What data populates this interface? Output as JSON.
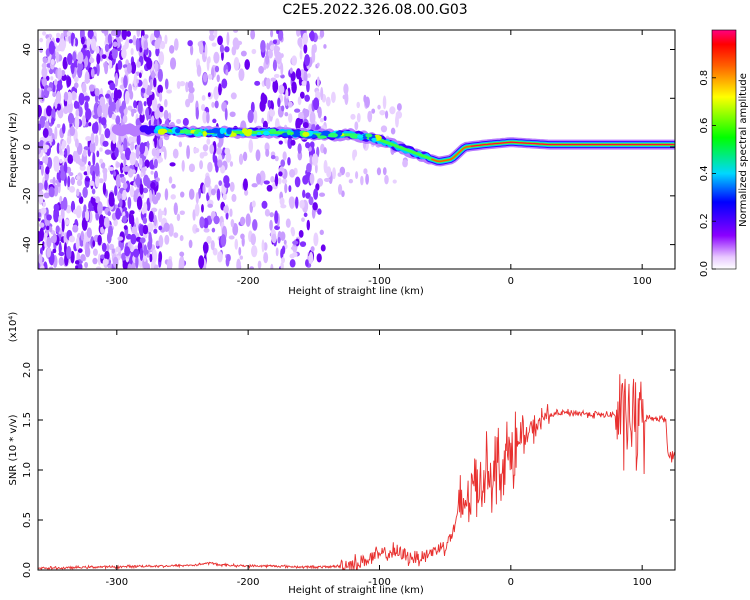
{
  "title": "C2E5.2022.326.08.00.G03",
  "chart_data": [
    {
      "type": "heatmap",
      "xlabel": "Height of straight line (km)",
      "ylabel": "Frequency (Hz)",
      "xlim": [
        -360,
        125
      ],
      "ylim": [
        -50,
        48
      ],
      "xticks": [
        -300,
        -200,
        -100,
        0,
        100
      ],
      "yticks": [
        -40,
        -20,
        0,
        20,
        40
      ],
      "xtick_labels": [
        "-300",
        "-200",
        "-100",
        "0",
        "100"
      ],
      "ytick_labels": [
        "-40",
        "-20",
        "0",
        "20",
        "40"
      ],
      "colorbar": {
        "label": "Normalized spectral amplitude",
        "range": [
          0,
          1
        ],
        "ticks": [
          0.0,
          0.2,
          0.4,
          0.6,
          0.8
        ],
        "tick_labels": [
          "0.0",
          "0.2",
          "0.4",
          "0.6",
          "0.8"
        ],
        "colormap": "rainbow (white → purple → blue → cyan → green → yellow → orange → red)"
      },
      "ridge": [
        {
          "x": -270,
          "y": 7
        },
        {
          "x": -240,
          "y": 6
        },
        {
          "x": -210,
          "y": 6
        },
        {
          "x": -180,
          "y": 6
        },
        {
          "x": -150,
          "y": 5
        },
        {
          "x": -120,
          "y": 5
        },
        {
          "x": -100,
          "y": 3
        },
        {
          "x": -85,
          "y": 0
        },
        {
          "x": -70,
          "y": -3
        },
        {
          "x": -55,
          "y": -6
        },
        {
          "x": -45,
          "y": -5
        },
        {
          "x": -35,
          "y": 0
        },
        {
          "x": -20,
          "y": 1
        },
        {
          "x": 0,
          "y": 2
        },
        {
          "x": 30,
          "y": 1
        },
        {
          "x": 60,
          "y": 1
        },
        {
          "x": 90,
          "y": 1
        },
        {
          "x": 120,
          "y": 1
        }
      ]
    },
    {
      "type": "line",
      "xlabel": "Height of straight line (km)",
      "ylabel": "SNR (10 * v/v)",
      "multiplier": "(x10⁴)",
      "xlim": [
        -360,
        125
      ],
      "ylim": [
        0,
        2.4
      ],
      "xticks": [
        -300,
        -200,
        -100,
        0,
        100
      ],
      "yticks": [
        0.0,
        0.5,
        1.0,
        1.5,
        2.0
      ],
      "xtick_labels": [
        "-300",
        "-200",
        "-100",
        "0",
        "100"
      ],
      "ytick_labels": [
        "0.0",
        "0.5",
        "1.0",
        "1.5",
        "2.0"
      ],
      "series": [
        {
          "color": "#e8302f",
          "x": [
            -360,
            -340,
            -320,
            -300,
            -280,
            -260,
            -240,
            -230,
            -220,
            -200,
            -180,
            -160,
            -140,
            -130,
            -120,
            -110,
            -100,
            -90,
            -80,
            -70,
            -60,
            -50,
            -45,
            -40,
            -35,
            -30,
            -25,
            -20,
            -15,
            -10,
            -5,
            0,
            5,
            10,
            15,
            20,
            25,
            30,
            40,
            50,
            60,
            70,
            80,
            90,
            95,
            100,
            105,
            110,
            115,
            118,
            120,
            125
          ],
          "y": [
            0.02,
            0.02,
            0.03,
            0.03,
            0.04,
            0.04,
            0.05,
            0.07,
            0.05,
            0.04,
            0.04,
            0.03,
            0.03,
            0.04,
            0.06,
            0.1,
            0.15,
            0.18,
            0.14,
            0.12,
            0.18,
            0.25,
            0.35,
            0.55,
            0.7,
            0.8,
            0.9,
            0.95,
            1.0,
            1.05,
            1.1,
            1.15,
            1.25,
            1.3,
            1.38,
            1.45,
            1.52,
            1.55,
            1.57,
            1.57,
            1.56,
            1.55,
            1.55,
            1.5,
            1.48,
            1.5,
            1.52,
            1.52,
            1.52,
            1.5,
            1.15,
            1.12
          ]
        }
      ]
    }
  ]
}
